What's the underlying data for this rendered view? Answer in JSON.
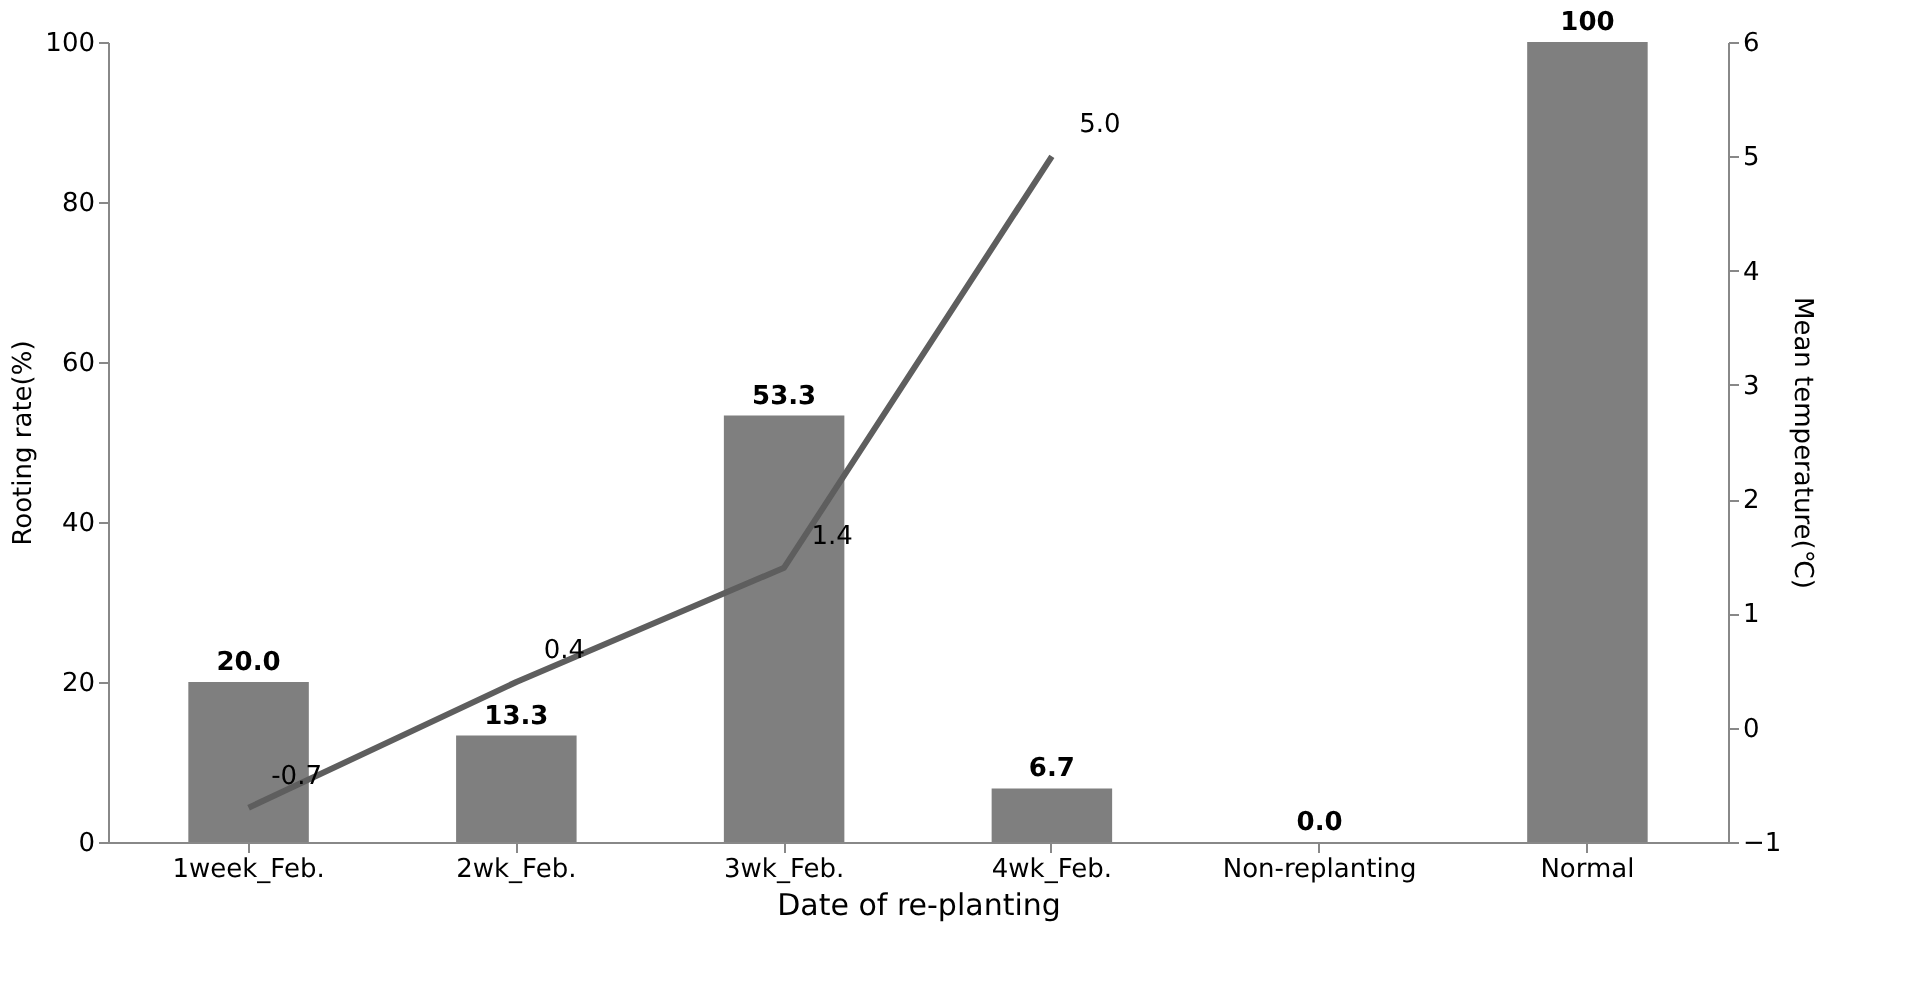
{
  "chart_data": {
    "type": "bar",
    "xlabel": "Date of re-planting",
    "ylabel": "Rooting rate(%)",
    "y2label": "Mean temperature(℃)",
    "categories": [
      "1week_Feb.",
      "2wk_Feb.",
      "3wk_Feb.",
      "4wk_Feb.",
      "Non-replanting",
      "Normal"
    ],
    "series": [
      {
        "color": "#7f7f7f",
        "values": [
          20.0,
          13.3,
          53.3,
          6.7,
          0.0,
          100
        ],
        "value_labels": [
          "20.0",
          "13.3",
          "53.3",
          "6.7",
          "0.0",
          "100"
        ]
      },
      {
        "type": "line",
        "axis": "y2",
        "color": "#5e5e5e",
        "values": [
          -0.7,
          0.4,
          1.4,
          5.0,
          null,
          null
        ],
        "value_labels": [
          "-0.7",
          "0.4",
          "1.4",
          "5.0",
          null,
          null
        ]
      }
    ],
    "ylim": [
      0,
      100
    ],
    "yticks": [
      0,
      20,
      40,
      60,
      80,
      100
    ],
    "y2lim": [
      -1,
      6
    ],
    "y2ticks": [
      -1,
      0,
      1,
      2,
      3,
      4,
      5,
      6
    ],
    "grid": false,
    "marker": "none",
    "line_style": "solid"
  }
}
